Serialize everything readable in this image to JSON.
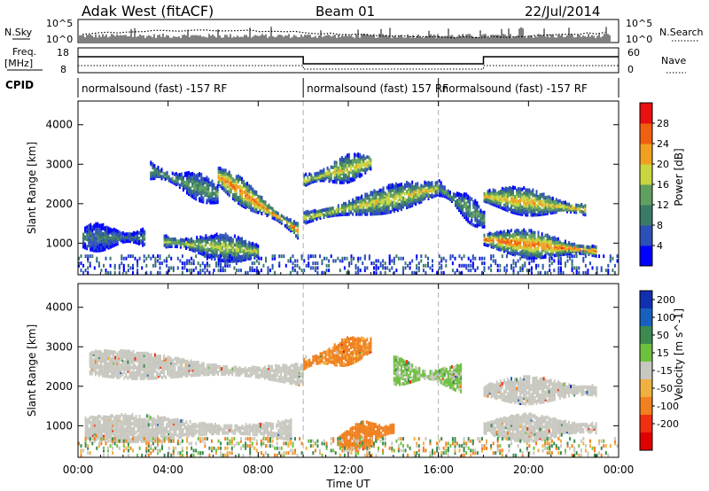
{
  "header": {
    "radar": "Adak West (fitACF)",
    "beam": "Beam 01",
    "date": "22/Jul/2014"
  },
  "top_panels": {
    "nsky_label": "N.Sky",
    "nsky_ticks": [
      "10^5",
      "10^0"
    ],
    "nsearch_label": "N.Search",
    "nsearch_ticks": [
      "10^5",
      "10^0"
    ],
    "freq_label": "Freq.",
    "freq_unit": "[MHz]",
    "freq_ticks": [
      "18",
      "8"
    ],
    "nave_label": "Nave",
    "nave_ticks": [
      "60",
      "0"
    ],
    "cpid_label": "CPID",
    "cpid_segments": [
      {
        "label": "normalsound (fast) -157 RF",
        "start_hour": 0,
        "end_hour": 10
      },
      {
        "label": "normalsound (fast) 157 RF",
        "start_hour": 10,
        "end_hour": 16
      },
      {
        "label": "normalsound (fast) -157 RF",
        "start_hour": 16,
        "end_hour": 24
      }
    ]
  },
  "chart_data": [
    {
      "type": "heatmap",
      "name": "Power",
      "xlabel": "Time UT",
      "ylabel": "Slant Range [km]",
      "xlim": [
        0,
        24
      ],
      "ylim": [
        200,
        4600
      ],
      "x_ticks": [
        "00:00",
        "04:00",
        "08:00",
        "12:00",
        "16:00",
        "20:00",
        "00:00"
      ],
      "y_ticks": [
        1000,
        2000,
        3000,
        4000
      ],
      "colorbar_label": "Power [dB]",
      "colorbar_ticks": [
        "4",
        "8",
        "12",
        "16",
        "20",
        "24",
        "28"
      ],
      "colorbar_colors": [
        "#0000ff",
        "#2c4fb8",
        "#3c7a68",
        "#5fa060",
        "#c8d640",
        "#f0a020",
        "#f06010",
        "#e81010"
      ],
      "features": [
        {
          "start_hour": 3.2,
          "end_hour": 6.2,
          "range_start_km": 2850,
          "range_end_km": 2250,
          "peak_db": 14
        },
        {
          "start_hour": 6.2,
          "end_hour": 9.8,
          "range_start_km": 2700,
          "range_end_km": 1300,
          "peak_db": 26
        },
        {
          "start_hour": 0.2,
          "end_hour": 3.0,
          "range_start_km": 1150,
          "range_end_km": 1150,
          "peak_db": 10
        },
        {
          "start_hour": 3.8,
          "end_hour": 8.0,
          "range_start_km": 1050,
          "range_end_km": 800,
          "peak_db": 18
        },
        {
          "start_hour": 10.0,
          "end_hour": 13.0,
          "range_start_km": 2600,
          "range_end_km": 3050,
          "peak_db": 20
        },
        {
          "start_hour": 10.0,
          "end_hour": 16.0,
          "range_start_km": 1650,
          "range_end_km": 2400,
          "peak_db": 20
        },
        {
          "start_hour": 16.0,
          "end_hour": 18.0,
          "range_start_km": 2400,
          "range_end_km": 1600,
          "peak_db": 14
        },
        {
          "start_hour": 18.0,
          "end_hour": 22.5,
          "range_start_km": 2200,
          "range_end_km": 1850,
          "peak_db": 22
        },
        {
          "start_hour": 18.0,
          "end_hour": 23.0,
          "range_start_km": 1100,
          "range_end_km": 800,
          "peak_db": 26
        }
      ]
    },
    {
      "type": "heatmap",
      "name": "Velocity",
      "xlabel": "Time UT",
      "ylabel": "Slant Range [km]",
      "xlim": [
        0,
        24
      ],
      "ylim": [
        200,
        4600
      ],
      "x_ticks": [
        "00:00",
        "04:00",
        "08:00",
        "12:00",
        "16:00",
        "20:00",
        "00:00"
      ],
      "y_ticks": [
        1000,
        2000,
        3000,
        4000
      ],
      "colorbar_label": "Velocity [m s^-1]",
      "colorbar_ticks": [
        "200",
        "100",
        "50",
        "15",
        "-15",
        "-50",
        "-100",
        "-200"
      ],
      "colorbar_colors": [
        "#1030b0",
        "#1860c0",
        "#3c8a50",
        "#70c040",
        "#c8c8c0",
        "#f0b040",
        "#f08020",
        "#f03010",
        "#e00000"
      ],
      "features": [
        {
          "start_hour": 0.5,
          "end_hour": 10.0,
          "range_start_km": 2600,
          "range_end_km": 2300,
          "velocity_ms": 0
        },
        {
          "start_hour": 0.3,
          "end_hour": 9.5,
          "range_start_km": 950,
          "range_end_km": 900,
          "velocity_ms": 0
        },
        {
          "start_hour": 10.0,
          "end_hour": 13.0,
          "range_start_km": 2600,
          "range_end_km": 3050,
          "velocity_ms": -40
        },
        {
          "start_hour": 11.5,
          "end_hour": 14.0,
          "range_start_km": 600,
          "range_end_km": 950,
          "velocity_ms": -60
        },
        {
          "start_hour": 14.0,
          "end_hour": 17.0,
          "range_start_km": 2400,
          "range_end_km": 2200,
          "velocity_ms": 20
        },
        {
          "start_hour": 18.0,
          "end_hour": 23.0,
          "range_start_km": 1900,
          "range_end_km": 1900,
          "velocity_ms": 0
        },
        {
          "start_hour": 18.0,
          "end_hour": 23.0,
          "range_start_km": 950,
          "range_end_km": 950,
          "velocity_ms": 0
        }
      ]
    }
  ]
}
